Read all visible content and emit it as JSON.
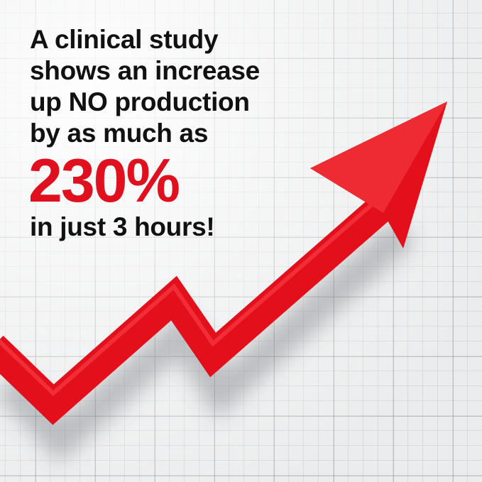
{
  "headline": {
    "lines": [
      "A clinical study",
      "shows an increase",
      "up NO production",
      "by as much as"
    ],
    "highlight": "230%",
    "closing": "in just 3 hours!"
  },
  "colors": {
    "accent": "#e0101e",
    "text": "#111111",
    "grid": "#9aa0a4"
  },
  "icons": {
    "arrow": "rising-zigzag-arrow-icon"
  }
}
